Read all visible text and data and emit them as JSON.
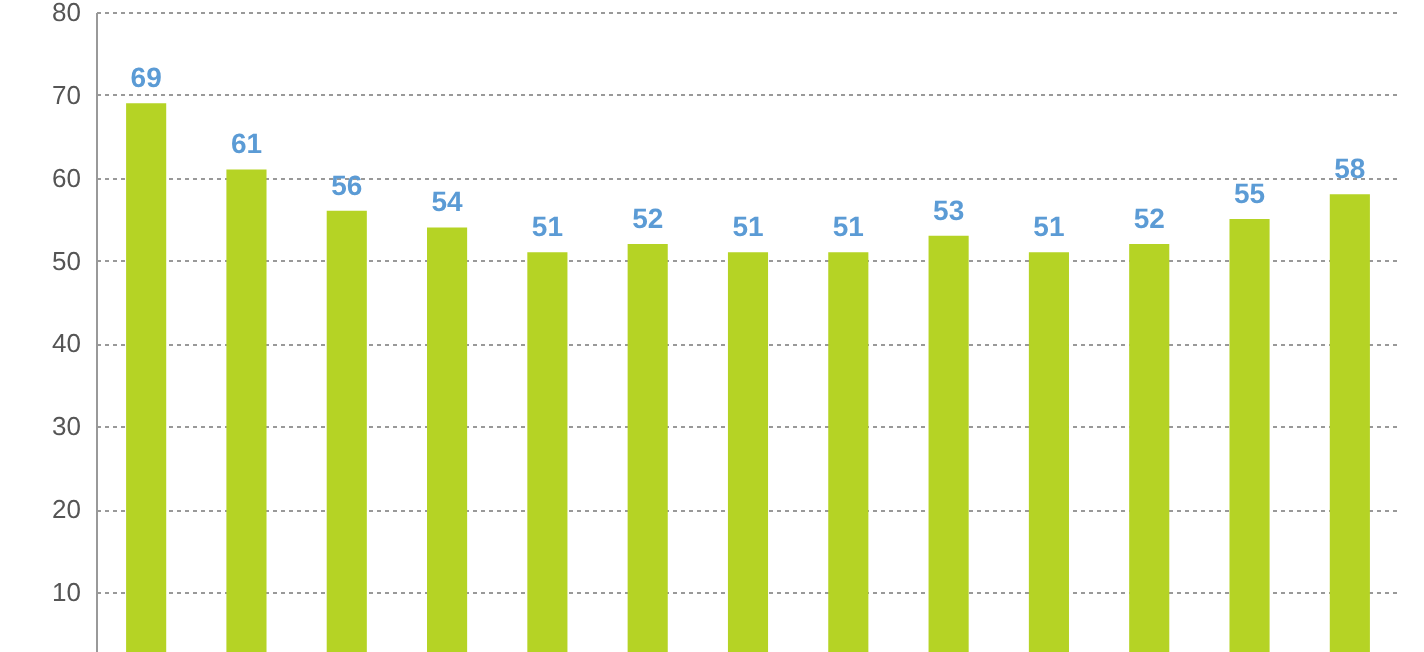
{
  "chart_data": {
    "type": "bar",
    "categories": [
      null,
      null,
      null,
      null,
      null,
      null,
      null,
      null,
      null,
      null,
      null,
      null,
      null
    ],
    "values": [
      69,
      61,
      56,
      54,
      51,
      52,
      51,
      51,
      53,
      51,
      52,
      55,
      58
    ],
    "color": "#b5d325",
    "ylim": [
      2.75,
      80
    ],
    "yticks": [
      10,
      20,
      30,
      40,
      50,
      60,
      70,
      80
    ],
    "grid": "y",
    "data_labels": true,
    "tick_labels": "y"
  }
}
